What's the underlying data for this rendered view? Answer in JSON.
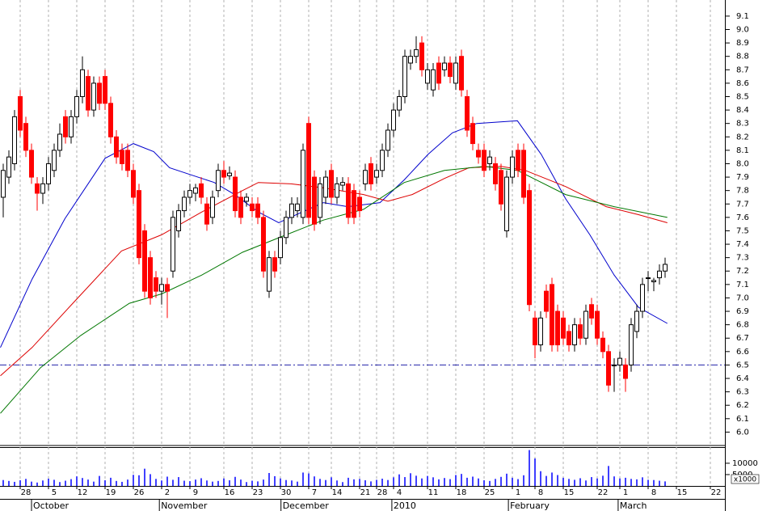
{
  "chart_data": {
    "type": "candlestick",
    "xlim": [
      -0.57,
      127.57
    ],
    "ylim": [
      5.9,
      9.22
    ],
    "grid": true,
    "up_color": "#ffffff",
    "down_color": "#ff0000",
    "yticks": [
      {
        "value": 6,
        "label": "6.0"
      },
      6.1,
      6.2,
      6.3,
      6.4,
      6.5,
      6.6,
      6.7,
      6.8,
      6.9,
      {
        "value": 7,
        "label": "7.0"
      },
      7.1,
      7.2,
      7.3,
      7.4,
      7.5,
      7.6,
      7.7,
      7.8,
      7.9,
      {
        "value": 8,
        "label": "8.0"
      },
      8.1,
      8.2,
      8.3,
      8.4,
      8.5,
      8.6,
      8.7,
      8.8,
      8.9,
      {
        "value": 9,
        "label": "9.0"
      },
      9.1
    ],
    "xticks": [
      {
        "value": 3,
        "label": "28"
      },
      {
        "value": 8,
        "label": "5"
      },
      {
        "value": 13,
        "label": "12"
      },
      {
        "value": 18,
        "label": "19"
      },
      {
        "value": 23,
        "label": "26"
      },
      {
        "value": 28,
        "label": "2"
      },
      {
        "value": 33,
        "label": "9"
      },
      {
        "value": 39,
        "label": "16"
      },
      {
        "value": 44,
        "label": "23"
      },
      {
        "value": 49,
        "label": "30"
      },
      {
        "value": 54,
        "label": "7"
      },
      {
        "value": 58,
        "label": "14"
      },
      {
        "value": 63,
        "label": "21"
      },
      {
        "value": 66,
        "label": "28"
      },
      {
        "value": 69,
        "label": "4"
      },
      {
        "value": 75,
        "label": "11"
      },
      {
        "value": 80,
        "label": "18"
      },
      {
        "value": 85,
        "label": "25"
      },
      {
        "value": 90,
        "label": "1"
      },
      {
        "value": 94,
        "label": "8"
      },
      {
        "value": 99,
        "label": "15"
      },
      {
        "value": 105,
        "label": "22"
      },
      {
        "value": 109,
        "label": "1"
      },
      {
        "value": 114,
        "label": "8"
      },
      {
        "value": 119,
        "label": "15"
      },
      {
        "value": 125,
        "label": "22"
      }
    ],
    "months": [
      {
        "value": 5,
        "label": "October"
      },
      {
        "value": 27.6,
        "label": "November"
      },
      {
        "value": 49.1,
        "label": "December"
      },
      {
        "value": 68.7,
        "label": "2010"
      },
      {
        "value": 89.3,
        "label": "February"
      },
      {
        "value": 108.7,
        "label": "March"
      }
    ],
    "open": [
      7.75,
      7.9,
      8.0,
      8.5,
      8.3,
      8.1,
      7.85,
      7.78,
      7.85,
      7.95,
      8.1,
      8.35,
      8.2,
      8.35,
      8.5,
      8.65,
      8.4,
      8.6,
      8.65,
      8.45,
      8.2,
      8.1,
      8.1,
      7.95,
      7.8,
      7.5,
      7.3,
      7.15,
      7.05,
      7.1,
      7.2,
      7.5,
      7.65,
      7.75,
      7.78,
      7.85,
      7.7,
      7.6,
      7.8,
      7.95,
      7.91,
      7.9,
      7.75,
      7.72,
      7.7,
      7.7,
      7.6,
      7.05,
      7.3,
      7.3,
      7.45,
      7.6,
      7.65,
      7.6,
      8.3,
      7.9,
      7.6,
      7.75,
      7.95,
      7.75,
      7.84,
      7.85,
      7.8,
      7.75,
      7.85,
      8.0,
      7.9,
      7.95,
      8.1,
      8.25,
      8.4,
      8.5,
      8.75,
      8.8,
      8.9,
      8.6,
      8.55,
      8.75,
      8.7,
      8.75,
      8.6,
      8.8,
      8.5,
      8.3,
      8.1,
      8.1,
      8.0,
      8.0,
      7.95,
      7.5,
      7.9,
      8.1,
      8.1,
      7.8,
      6.85,
      6.65,
      7.05,
      7.1,
      6.9,
      6.85,
      6.75,
      6.65,
      6.8,
      6.7,
      6.95,
      6.9,
      6.7,
      6.6,
      6.5,
      6.5,
      6.5,
      6.5,
      6.75,
      6.9,
      7.15,
      7.12,
      7.15,
      7.2
    ],
    "high": [
      8.0,
      8.1,
      8.4,
      8.55,
      8.35,
      8.15,
      7.9,
      7.9,
      8.05,
      8.15,
      8.3,
      8.4,
      8.4,
      8.55,
      8.8,
      8.7,
      8.65,
      8.65,
      8.7,
      8.5,
      8.25,
      8.15,
      8.15,
      8.0,
      7.85,
      7.55,
      7.35,
      7.2,
      7.15,
      7.15,
      7.65,
      7.7,
      7.8,
      7.85,
      7.85,
      7.9,
      7.75,
      7.8,
      8.0,
      8.02,
      7.98,
      7.95,
      7.8,
      7.78,
      7.75,
      7.75,
      7.65,
      7.35,
      7.35,
      7.5,
      7.65,
      7.75,
      7.75,
      8.15,
      8.35,
      7.95,
      7.9,
      7.95,
      8.0,
      7.9,
      7.9,
      7.9,
      7.85,
      7.8,
      8.0,
      8.05,
      8.0,
      8.15,
      8.3,
      8.45,
      8.55,
      8.85,
      8.85,
      8.95,
      8.95,
      8.75,
      8.75,
      8.8,
      8.8,
      8.8,
      8.8,
      8.85,
      8.55,
      8.35,
      8.15,
      8.15,
      8.1,
      8.05,
      8.0,
      7.95,
      8.1,
      8.15,
      8.15,
      7.85,
      6.9,
      6.9,
      7.1,
      7.15,
      6.95,
      6.9,
      6.8,
      6.85,
      6.85,
      6.95,
      7.0,
      6.95,
      6.75,
      6.65,
      6.55,
      6.6,
      6.55,
      6.85,
      6.95,
      7.15,
      7.2,
      7.15,
      7.25,
      7.3
    ],
    "low": [
      7.6,
      7.85,
      7.95,
      8.2,
      8.05,
      7.85,
      7.65,
      7.7,
      7.8,
      7.9,
      8.05,
      8.15,
      8.15,
      8.3,
      8.45,
      8.35,
      8.35,
      8.4,
      8.4,
      8.15,
      8.0,
      7.95,
      7.9,
      7.7,
      7.25,
      7.0,
      6.95,
      7.0,
      6.95,
      6.85,
      7.15,
      7.45,
      7.6,
      7.7,
      7.72,
      7.7,
      7.5,
      7.55,
      7.75,
      7.85,
      7.88,
      7.6,
      7.55,
      7.68,
      7.6,
      7.55,
      7.15,
      7.0,
      7.15,
      7.25,
      7.4,
      7.55,
      7.6,
      7.55,
      7.55,
      7.5,
      7.55,
      7.7,
      7.7,
      7.7,
      7.8,
      7.55,
      7.55,
      7.6,
      7.8,
      7.8,
      7.85,
      7.9,
      8.05,
      8.2,
      8.35,
      8.45,
      8.7,
      8.75,
      8.65,
      8.55,
      8.5,
      8.55,
      8.65,
      8.6,
      8.55,
      8.5,
      8.2,
      8.1,
      8.0,
      7.9,
      7.95,
      7.8,
      7.65,
      7.45,
      7.85,
      7.9,
      7.7,
      6.9,
      6.55,
      6.6,
      6.85,
      6.6,
      6.6,
      6.65,
      6.6,
      6.6,
      6.65,
      6.65,
      6.8,
      6.65,
      6.55,
      6.3,
      6.3,
      6.45,
      6.3,
      6.45,
      6.7,
      6.85,
      7.05,
      7.05,
      7.1,
      7.15
    ],
    "close": [
      7.95,
      8.05,
      8.35,
      8.25,
      8.1,
      7.9,
      7.78,
      7.85,
      8.0,
      8.1,
      8.22,
      8.2,
      8.35,
      8.5,
      8.7,
      8.4,
      8.6,
      8.45,
      8.45,
      8.2,
      8.05,
      8.0,
      7.95,
      7.75,
      7.3,
      7.05,
      7.0,
      7.05,
      7.1,
      7.05,
      7.6,
      7.65,
      7.75,
      7.8,
      7.82,
      7.75,
      7.55,
      7.75,
      7.95,
      7.9,
      7.93,
      7.65,
      7.6,
      7.75,
      7.65,
      7.6,
      7.2,
      7.3,
      7.2,
      7.45,
      7.6,
      7.7,
      7.7,
      8.1,
      7.6,
      7.55,
      7.85,
      7.9,
      7.75,
      7.85,
      7.86,
      7.6,
      7.6,
      7.65,
      7.95,
      7.85,
      7.95,
      8.1,
      8.25,
      8.4,
      8.5,
      8.8,
      8.8,
      8.85,
      8.7,
      8.7,
      8.7,
      8.6,
      8.75,
      8.65,
      8.75,
      8.55,
      8.25,
      8.15,
      8.05,
      7.95,
      8.05,
      7.85,
      7.7,
      7.9,
      8.05,
      7.95,
      7.75,
      6.95,
      6.65,
      6.85,
      6.9,
      6.65,
      6.65,
      6.7,
      6.65,
      6.8,
      6.7,
      6.9,
      6.85,
      6.7,
      6.6,
      6.35,
      6.5,
      6.55,
      6.4,
      6.8,
      6.9,
      7.1,
      7.15,
      7.13,
      7.2,
      7.25
    ],
    "moving_averages": [
      {
        "color": "#0000cc",
        "x": [
          -0.5,
          5.1,
          10.9,
          18,
          23,
          26.6,
          29.4,
          33,
          37.3,
          40.9,
          45.1,
          48.7,
          52.3,
          56.6,
          60.9,
          66.6,
          70.9,
          75.1,
          79.4,
          83.7,
          90.9,
          95.1,
          99.4,
          103.7,
          108,
          112.3,
          117.4
        ],
        "values": [
          6.63,
          7.14,
          7.59,
          8.04,
          8.15,
          8.09,
          7.97,
          7.92,
          7.86,
          7.77,
          7.64,
          7.56,
          7.63,
          7.71,
          7.68,
          7.71,
          7.88,
          8.07,
          8.23,
          8.3,
          8.32,
          8.07,
          7.74,
          7.47,
          7.17,
          6.93,
          6.81
        ]
      },
      {
        "color": "#dd0000",
        "x": [
          -0.5,
          5.1,
          12.3,
          20.9,
          28,
          35.1,
          42.3,
          45.1,
          50.9,
          56.6,
          63.7,
          68,
          72.3,
          78,
          82.3,
          88,
          92.3,
          99.4,
          106.6,
          112.3,
          117.4
        ],
        "values": [
          6.42,
          6.63,
          6.96,
          7.35,
          7.47,
          7.64,
          7.8,
          7.86,
          7.85,
          7.82,
          7.77,
          7.72,
          7.77,
          7.89,
          7.97,
          7.98,
          7.95,
          7.83,
          7.68,
          7.62,
          7.56
        ]
      },
      {
        "color": "#007700",
        "x": [
          -0.5,
          6.6,
          13.7,
          22.3,
          28,
          35.1,
          42.3,
          49.4,
          56.6,
          63.7,
          70.9,
          78,
          85.1,
          90.9,
          99.4,
          108,
          117.4
        ],
        "values": [
          6.14,
          6.48,
          6.72,
          6.96,
          7.03,
          7.17,
          7.34,
          7.46,
          7.58,
          7.66,
          7.86,
          7.95,
          7.98,
          7.95,
          7.77,
          7.68,
          7.6
        ]
      }
    ],
    "hline": {
      "value": 6.5,
      "color": "#2222aa"
    },
    "volume": {
      "color": "#0000ff",
      "ylim": [
        0,
        17100
      ],
      "yticks": [
        10000,
        5000
      ],
      "unit_label": "x1000",
      "values": [
        2600,
        2200,
        1800,
        2500,
        3100,
        1900,
        1500,
        2400,
        3200,
        2700,
        1700,
        2300,
        3000,
        4200,
        3500,
        2800,
        1900,
        4400,
        2500,
        3600,
        2200,
        1800,
        2800,
        4900,
        4700,
        7600,
        5200,
        3100,
        2400,
        4100,
        2700,
        3900,
        2300,
        2100,
        2800,
        3400,
        2400,
        1900,
        2200,
        3300,
        2500,
        4000,
        2800,
        1700,
        2300,
        2000,
        2800,
        5700,
        4300,
        3300,
        2600,
        2400,
        1900,
        5900,
        5500,
        4200,
        3100,
        2600,
        3800,
        2400,
        1700,
        3600,
        2900,
        3100,
        2500,
        2000,
        2700,
        3200,
        2600,
        3800,
        5100,
        3900,
        5600,
        4500,
        3300,
        4400,
        3800,
        2900,
        3500,
        3000,
        4800,
        5300,
        3600,
        4100,
        3300,
        2500,
        2200,
        3100,
        4000,
        5400,
        3600,
        3000,
        4700,
        15800,
        12100,
        6500,
        4400,
        5900,
        4800,
        3600,
        3100,
        2700,
        3400,
        2400,
        3900,
        3300,
        4500,
        8800,
        4200,
        3300,
        3600,
        3100,
        2900,
        3800,
        2700,
        2600,
        2300,
        2000
      ]
    }
  }
}
